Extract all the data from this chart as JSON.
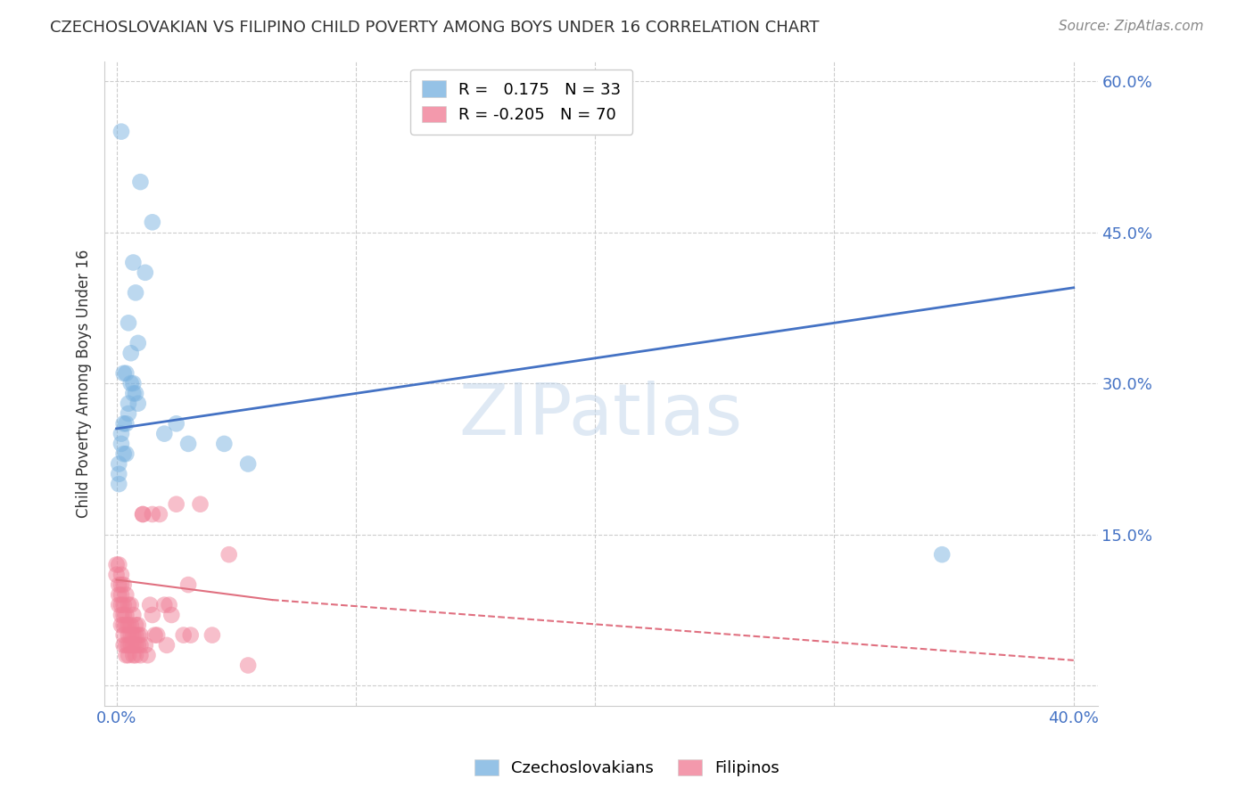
{
  "title": "CZECHOSLOVAKIAN VS FILIPINO CHILD POVERTY AMONG BOYS UNDER 16 CORRELATION CHART",
  "source": "Source: ZipAtlas.com",
  "ylabel": "Child Poverty Among Boys Under 16",
  "x_ticks": [
    0.0,
    0.1,
    0.2,
    0.3,
    0.4
  ],
  "x_tick_labels": [
    "0.0%",
    "",
    "",
    "",
    "40.0%"
  ],
  "y_ticks": [
    0.0,
    0.15,
    0.3,
    0.45,
    0.6
  ],
  "y_tick_labels": [
    "",
    "15.0%",
    "30.0%",
    "45.0%",
    "60.0%"
  ],
  "background_color": "#ffffff",
  "grid_color": "#cccccc",
  "watermark": "ZIPatlas",
  "czech_color": "#7bb3e0",
  "filipino_color": "#f08098",
  "czech_line_color": "#4472c4",
  "filipino_line_color": "#e07080",
  "czech_points": [
    [
      0.002,
      0.55
    ],
    [
      0.01,
      0.5
    ],
    [
      0.007,
      0.42
    ],
    [
      0.015,
      0.46
    ],
    [
      0.008,
      0.39
    ],
    [
      0.012,
      0.41
    ],
    [
      0.005,
      0.36
    ],
    [
      0.009,
      0.34
    ],
    [
      0.006,
      0.33
    ],
    [
      0.003,
      0.31
    ],
    [
      0.004,
      0.31
    ],
    [
      0.006,
      0.3
    ],
    [
      0.007,
      0.3
    ],
    [
      0.007,
      0.29
    ],
    [
      0.008,
      0.29
    ],
    [
      0.009,
      0.28
    ],
    [
      0.005,
      0.28
    ],
    [
      0.005,
      0.27
    ],
    [
      0.003,
      0.26
    ],
    [
      0.004,
      0.26
    ],
    [
      0.002,
      0.25
    ],
    [
      0.002,
      0.24
    ],
    [
      0.003,
      0.23
    ],
    [
      0.004,
      0.23
    ],
    [
      0.001,
      0.22
    ],
    [
      0.001,
      0.21
    ],
    [
      0.001,
      0.2
    ],
    [
      0.025,
      0.26
    ],
    [
      0.03,
      0.24
    ],
    [
      0.045,
      0.24
    ],
    [
      0.02,
      0.25
    ],
    [
      0.055,
      0.22
    ],
    [
      0.345,
      0.13
    ]
  ],
  "filipino_points": [
    [
      0.0,
      0.12
    ],
    [
      0.0,
      0.11
    ],
    [
      0.001,
      0.1
    ],
    [
      0.001,
      0.12
    ],
    [
      0.001,
      0.09
    ],
    [
      0.001,
      0.08
    ],
    [
      0.002,
      0.11
    ],
    [
      0.002,
      0.09
    ],
    [
      0.002,
      0.07
    ],
    [
      0.002,
      0.06
    ],
    [
      0.002,
      0.08
    ],
    [
      0.002,
      0.1
    ],
    [
      0.003,
      0.1
    ],
    [
      0.003,
      0.08
    ],
    [
      0.003,
      0.07
    ],
    [
      0.003,
      0.06
    ],
    [
      0.003,
      0.05
    ],
    [
      0.003,
      0.04
    ],
    [
      0.004,
      0.09
    ],
    [
      0.004,
      0.07
    ],
    [
      0.004,
      0.06
    ],
    [
      0.004,
      0.04
    ],
    [
      0.004,
      0.03
    ],
    [
      0.005,
      0.08
    ],
    [
      0.005,
      0.06
    ],
    [
      0.005,
      0.05
    ],
    [
      0.005,
      0.04
    ],
    [
      0.005,
      0.03
    ],
    [
      0.006,
      0.08
    ],
    [
      0.006,
      0.06
    ],
    [
      0.006,
      0.05
    ],
    [
      0.006,
      0.04
    ],
    [
      0.007,
      0.07
    ],
    [
      0.007,
      0.05
    ],
    [
      0.007,
      0.04
    ],
    [
      0.007,
      0.03
    ],
    [
      0.008,
      0.06
    ],
    [
      0.008,
      0.05
    ],
    [
      0.008,
      0.04
    ],
    [
      0.008,
      0.03
    ],
    [
      0.009,
      0.06
    ],
    [
      0.009,
      0.05
    ],
    [
      0.009,
      0.04
    ],
    [
      0.01,
      0.05
    ],
    [
      0.01,
      0.04
    ],
    [
      0.01,
      0.03
    ],
    [
      0.011,
      0.17
    ],
    [
      0.011,
      0.17
    ],
    [
      0.012,
      0.04
    ],
    [
      0.013,
      0.03
    ],
    [
      0.014,
      0.08
    ],
    [
      0.015,
      0.17
    ],
    [
      0.015,
      0.07
    ],
    [
      0.016,
      0.05
    ],
    [
      0.017,
      0.05
    ],
    [
      0.018,
      0.17
    ],
    [
      0.02,
      0.08
    ],
    [
      0.021,
      0.04
    ],
    [
      0.022,
      0.08
    ],
    [
      0.023,
      0.07
    ],
    [
      0.025,
      0.18
    ],
    [
      0.028,
      0.05
    ],
    [
      0.03,
      0.1
    ],
    [
      0.031,
      0.05
    ],
    [
      0.035,
      0.18
    ],
    [
      0.04,
      0.05
    ],
    [
      0.047,
      0.13
    ],
    [
      0.055,
      0.02
    ]
  ],
  "czech_line_x0": 0.0,
  "czech_line_y0": 0.255,
  "czech_line_x1": 0.4,
  "czech_line_y1": 0.395,
  "filipino_line_solid_x0": 0.0,
  "filipino_line_solid_y0": 0.105,
  "filipino_line_solid_x1": 0.065,
  "filipino_line_solid_y1": 0.085,
  "filipino_line_dash_x0": 0.065,
  "filipino_line_dash_y0": 0.085,
  "filipino_line_dash_x1": 0.4,
  "filipino_line_dash_y1": 0.025,
  "xlim": [
    -0.005,
    0.41
  ],
  "ylim": [
    -0.02,
    0.62
  ]
}
